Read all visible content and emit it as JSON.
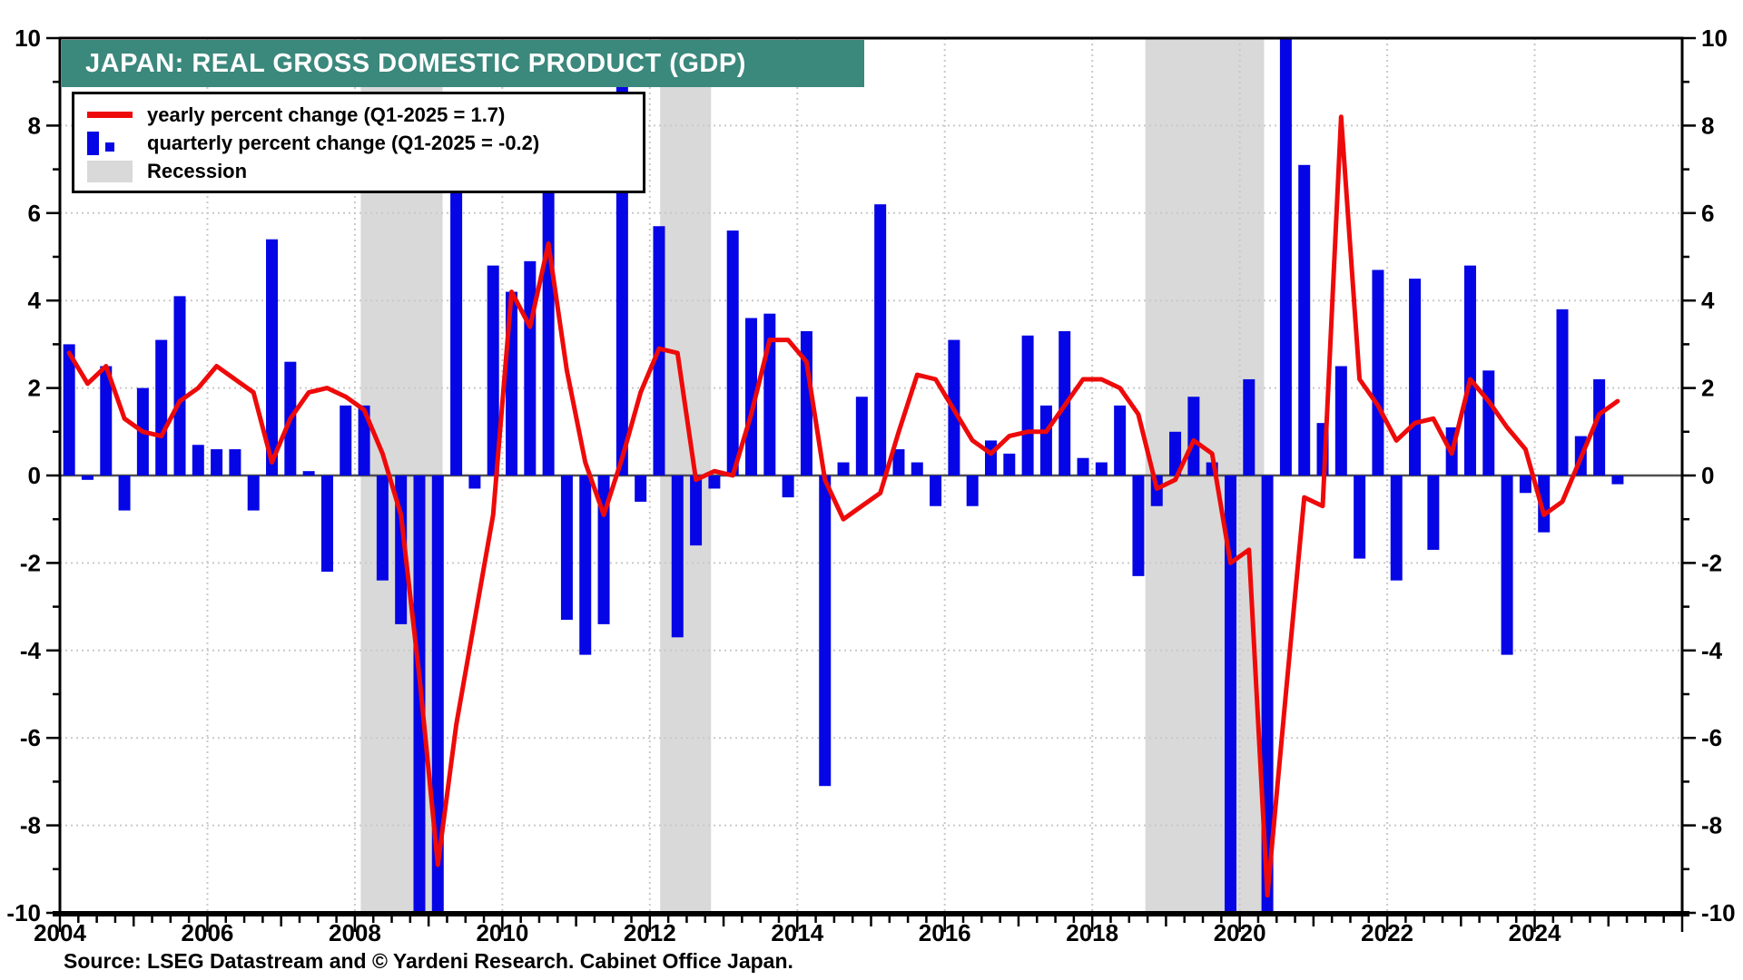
{
  "header": {
    "title": "JAPAN: REAL GROSS DOMESTIC PRODUCT (GDP)"
  },
  "legend": {
    "items": [
      {
        "swatch": "red-line",
        "label": "yearly percent change (Q1-2025 = 1.7)"
      },
      {
        "swatch": "blue-bars",
        "label": "quarterly percent change (Q1-2025 = -0.2)"
      },
      {
        "swatch": "gray-patch",
        "label": "Recession"
      }
    ]
  },
  "footer": {
    "source": "Source: LSEG Datastream and © Yardeni Research. Cabinet Office Japan."
  },
  "colors": {
    "title_bg": "#3b887c",
    "title_text": "#ffffff",
    "bar_blue": "#0505e5",
    "line_red": "#ee0a0a",
    "recession_gray": "#d9d9d9",
    "gridline": "#c9c9c9",
    "zero_line": "#4f4f4f",
    "frame": "#000000"
  },
  "chart_data": {
    "type": "bar+line",
    "title": "JAPAN: REAL GROSS DOMESTIC PRODUCT (GDP)",
    "start_quarter": "2004-Q1",
    "end_quarter": "2025-Q1",
    "x_axis": {
      "start_year": 2004,
      "end_year": 2026,
      "minor_tick": "quarterly",
      "tick_labels": [
        "2004",
        "2006",
        "2008",
        "2010",
        "2012",
        "2014",
        "2016",
        "2018",
        "2020",
        "2022",
        "2024"
      ]
    },
    "y_axis": {
      "range": [
        -10,
        10
      ],
      "tick_step": 2,
      "sides": "both",
      "tick_labels": [
        "-10",
        "-8",
        "-6",
        "-4",
        "-2",
        "0",
        "2",
        "4",
        "6",
        "8",
        "10"
      ]
    },
    "grid": "dotted",
    "legend_position": "top-left",
    "recessions": [
      [
        2008.08,
        2009.19
      ],
      [
        2012.14,
        2012.83
      ],
      [
        2018.72,
        2020.33
      ]
    ],
    "clipped_bars_note": "Bars for 2008-Q4, 2009-Q1, 2019-Q4 and 2020-Q2 extend below -10, and 2020-Q3 above +10; they are drawn clipped at the axis limits.",
    "series": [
      {
        "name": "yearly percent change",
        "type": "line",
        "color": "#ee0a0a",
        "values": [
          2.8,
          2.1,
          2.5,
          1.3,
          1.0,
          0.9,
          1.7,
          2.0,
          2.5,
          2.2,
          1.9,
          0.3,
          1.3,
          1.9,
          2.0,
          1.8,
          1.5,
          0.5,
          -0.9,
          -4.6,
          -8.9,
          -5.7,
          -3.3,
          -0.9,
          4.2,
          3.4,
          5.3,
          2.4,
          0.3,
          -0.9,
          0.4,
          1.9,
          2.9,
          2.8,
          -0.1,
          0.1,
          0.0,
          1.4,
          3.1,
          3.1,
          2.6,
          -0.1,
          -1.0,
          -0.7,
          -0.4,
          1.0,
          2.3,
          2.2,
          1.5,
          0.8,
          0.5,
          0.9,
          1.0,
          1.0,
          1.6,
          2.2,
          2.2,
          2.0,
          1.4,
          -0.3,
          -0.1,
          0.8,
          0.5,
          -2.0,
          -1.7,
          -9.6,
          -5.0,
          -0.5,
          -0.7,
          8.2,
          2.2,
          1.6,
          0.8,
          1.2,
          1.3,
          0.5,
          2.2,
          1.7,
          1.1,
          0.6,
          -0.9,
          -0.6,
          0.4,
          1.4,
          1.7
        ]
      },
      {
        "name": "quarterly percent change",
        "type": "bar",
        "color": "#0505e5",
        "values": [
          3.0,
          -0.1,
          2.5,
          -0.8,
          2.0,
          3.1,
          4.1,
          0.7,
          0.6,
          0.6,
          -0.8,
          5.4,
          2.6,
          0.1,
          -2.2,
          1.6,
          1.6,
          -2.4,
          -3.4,
          -10,
          -10,
          6.9,
          -0.3,
          4.8,
          4.2,
          4.9,
          6.8,
          -3.3,
          -4.1,
          -3.4,
          8.9,
          -0.6,
          5.7,
          -3.7,
          -1.6,
          -0.3,
          5.6,
          3.6,
          3.7,
          -0.5,
          3.3,
          -7.1,
          0.3,
          1.8,
          6.2,
          0.6,
          0.3,
          -0.7,
          3.1,
          -0.7,
          0.8,
          0.5,
          3.2,
          1.6,
          3.3,
          0.4,
          0.3,
          1.6,
          -2.3,
          -0.7,
          1.0,
          1.8,
          0.3,
          -10,
          2.2,
          -10,
          10,
          7.1,
          1.2,
          2.5,
          -1.9,
          4.7,
          -2.4,
          4.5,
          -1.7,
          1.1,
          4.8,
          2.4,
          -4.1,
          -0.4,
          -1.3,
          3.8,
          0.9,
          2.2,
          -0.2
        ]
      }
    ]
  }
}
